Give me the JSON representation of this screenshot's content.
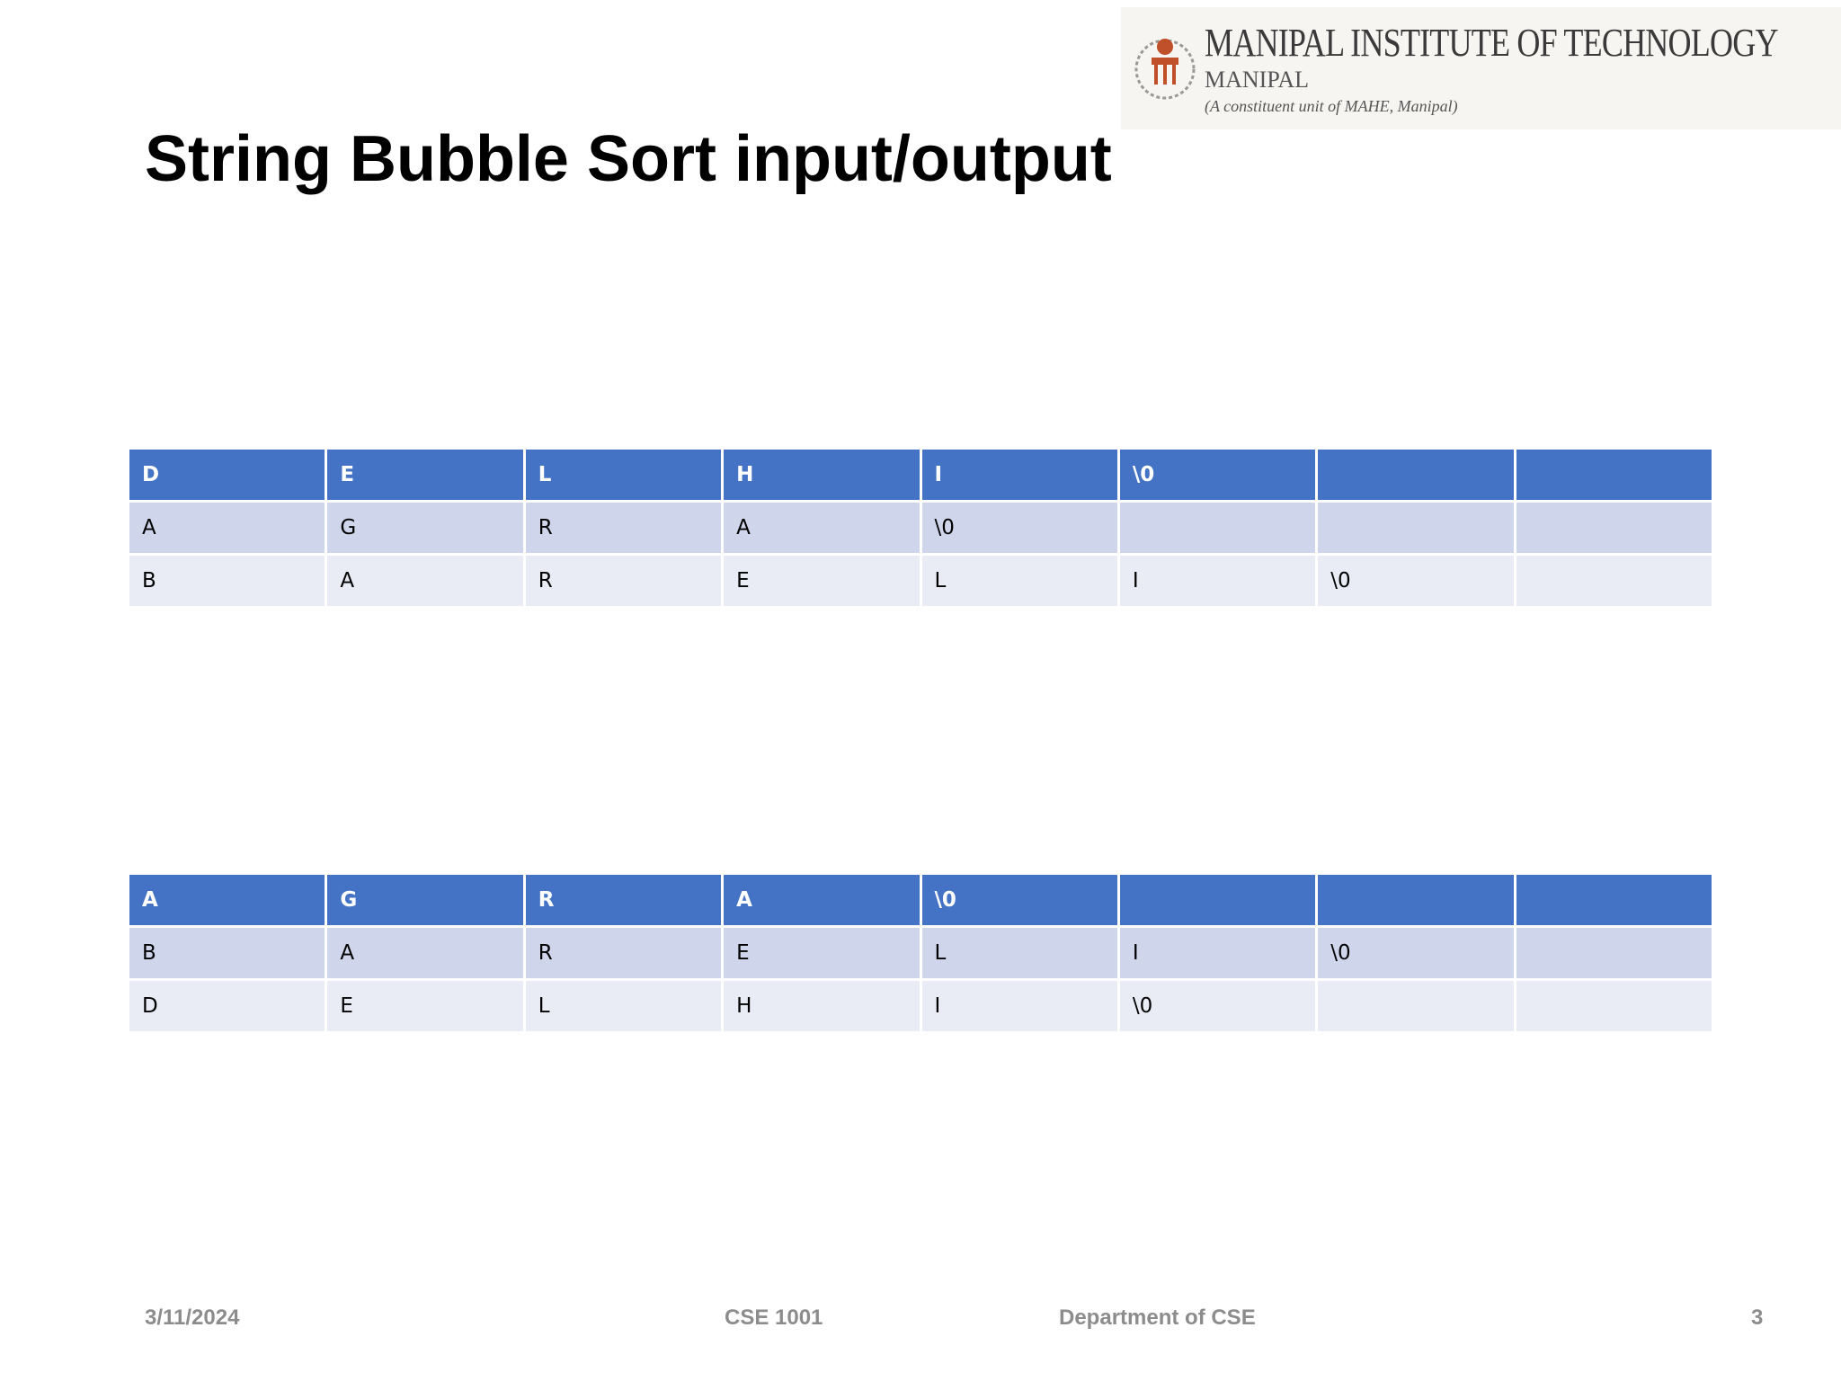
{
  "header": {
    "institute": "MANIPAL INSTITUTE OF TECHNOLOGY",
    "place": "MANIPAL",
    "note": "(A constituent unit of MAHE, Manipal)"
  },
  "title": "String Bubble Sort input/output",
  "tables": [
    {
      "rows": [
        [
          "D",
          "E",
          "L",
          "H",
          "I",
          "\\0",
          null,
          null
        ],
        [
          "A",
          "G",
          "R",
          "A",
          "\\0",
          null,
          null,
          null
        ],
        [
          "B",
          "A",
          "R",
          "E",
          "L",
          "I",
          "\\0",
          null
        ]
      ]
    },
    {
      "rows": [
        [
          "A",
          "G",
          "R",
          "A",
          "\\0",
          null,
          null,
          null
        ],
        [
          "B",
          "A",
          "R",
          "E",
          "L",
          "I",
          "\\0",
          null
        ],
        [
          "D",
          "E",
          "L",
          "H",
          "I",
          "\\0",
          null,
          null
        ]
      ]
    }
  ],
  "footer": {
    "date": "3/11/2024",
    "course": "CSE 1001",
    "department": "Department of CSE",
    "page": "3"
  }
}
